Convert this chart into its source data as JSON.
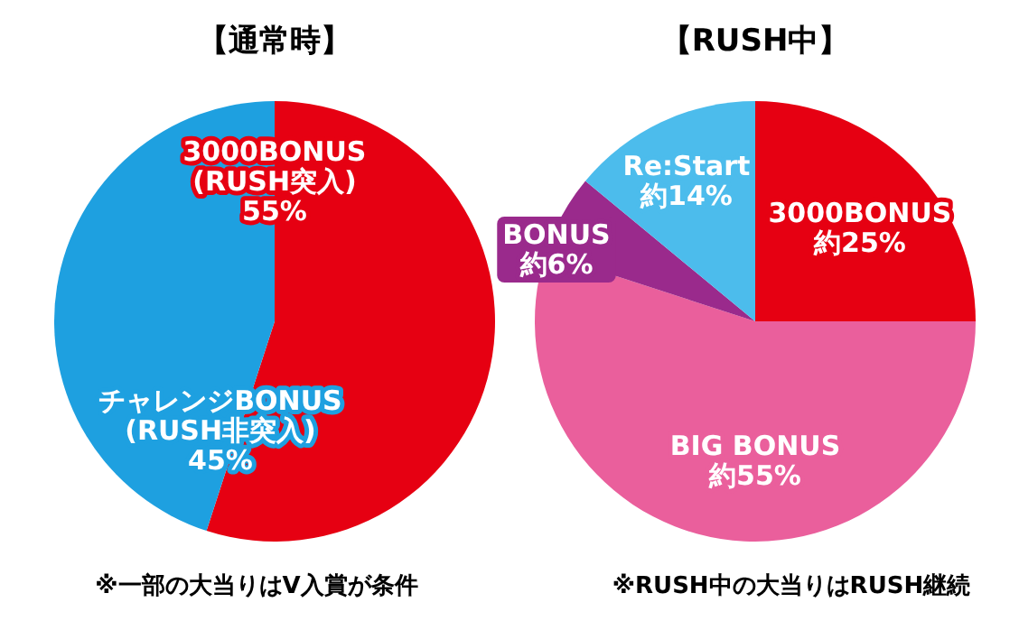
{
  "chart_data": [
    {
      "type": "pie",
      "title": "【通常時】",
      "categories": [
        "3000BONUS\n(RUSH突入)",
        "チャレンジBONUS\n(RUSH非突入)"
      ],
      "values": [
        55,
        45
      ],
      "colors": [
        "#e60012",
        "#1ea0e0"
      ],
      "value_labels": [
        "55%",
        "45%"
      ],
      "annotations": [
        "※一部の大当りはV入賞が条件"
      ]
    },
    {
      "type": "pie",
      "title": "【RUSH中】",
      "categories": [
        "3000BONUS",
        "BIG BONUS",
        "BONUS",
        "Re:Start"
      ],
      "values": [
        25,
        55,
        6,
        14
      ],
      "colors": [
        "#e60012",
        "#ea5f9c",
        "#9a2a8c",
        "#4cbcec"
      ],
      "value_labels": [
        "約25%",
        "約55%",
        "約6%",
        "約14%"
      ],
      "annotations": [
        "※RUSH中の大当りはRUSH継続"
      ]
    }
  ]
}
